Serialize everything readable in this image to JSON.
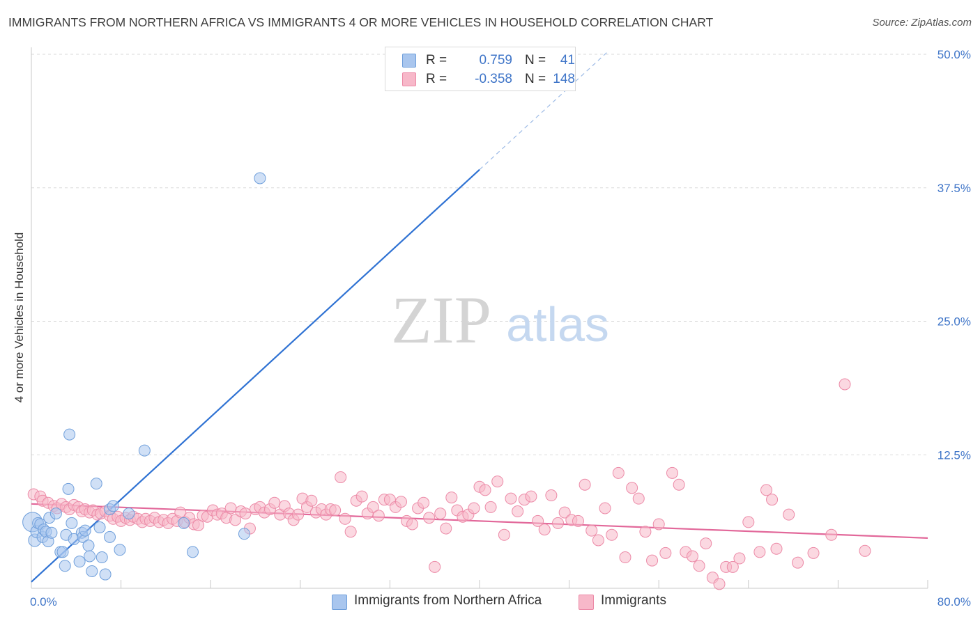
{
  "header": {
    "title": "IMMIGRANTS FROM NORTHERN AFRICA VS IMMIGRANTS 4 OR MORE VEHICLES IN HOUSEHOLD CORRELATION CHART",
    "source": "Source: ZipAtlas.com"
  },
  "watermark": {
    "zip": "ZIP",
    "atlas": "atlas"
  },
  "legend": {
    "r_label": "R =",
    "n_label": "N =",
    "rows": [
      {
        "r": "0.759",
        "n": "41",
        "color": "#a9c6ee"
      },
      {
        "r": "-0.358",
        "n": "148",
        "color": "#f7b8c9"
      }
    ]
  },
  "colors": {
    "blue_point_fill": "#a9c6ee",
    "blue_point_stroke": "#6f9fdb",
    "blue_line": "#2f72d3",
    "pink_point_fill": "#f7b8c9",
    "pink_point_stroke": "#ec8aa7",
    "pink_line": "#e2689a",
    "tick_label": "#3f75c8",
    "grid": "#dadada"
  },
  "chart_data": {
    "type": "scatter",
    "title": "IMMIGRANTS FROM NORTHERN AFRICA VS IMMIGRANTS 4 OR MORE VEHICLES IN HOUSEHOLD CORRELATION CHART",
    "xlabel": "",
    "ylabel": "4 or more Vehicles in Household",
    "xlim": [
      0,
      80
    ],
    "ylim": [
      0,
      50
    ],
    "x_tick_labels": [
      "0.0%",
      "80.0%"
    ],
    "y_ticks": [
      12.5,
      25.0,
      37.5,
      50.0
    ],
    "y_tick_labels": [
      "12.5%",
      "25.0%",
      "37.5%",
      "50.0%"
    ],
    "grid": true,
    "legend_position": "top-center",
    "series": [
      {
        "name": "Immigrants from Northern Africa",
        "r": 0.759,
        "n": 41,
        "trend": {
          "x": [
            0,
            40
          ],
          "y": [
            0.6,
            39.2
          ]
        },
        "trend_extension": {
          "x": [
            40,
            51.5
          ],
          "y": [
            39.2,
            50.3
          ]
        },
        "points": [
          [
            0.1,
            6.2,
            14
          ],
          [
            0.3,
            4.5,
            9
          ],
          [
            0.5,
            5.3,
            9
          ],
          [
            0.6,
            6.1,
            8
          ],
          [
            0.8,
            6.0,
            8
          ],
          [
            1.0,
            4.8,
            8
          ],
          [
            1.1,
            5.5,
            8
          ],
          [
            1.3,
            5.3,
            8
          ],
          [
            1.5,
            4.4,
            8
          ],
          [
            1.6,
            6.6,
            8
          ],
          [
            1.8,
            5.2,
            8
          ],
          [
            2.2,
            7.0,
            8
          ],
          [
            2.6,
            3.4,
            8
          ],
          [
            2.8,
            3.4,
            8
          ],
          [
            3.0,
            2.1,
            8
          ],
          [
            3.1,
            5.0,
            8
          ],
          [
            3.3,
            9.3,
            8
          ],
          [
            3.4,
            14.4,
            8
          ],
          [
            3.6,
            6.1,
            8
          ],
          [
            3.8,
            4.6,
            8
          ],
          [
            4.3,
            2.5,
            8
          ],
          [
            4.5,
            5.2,
            8
          ],
          [
            4.6,
            4.8,
            8
          ],
          [
            4.8,
            5.4,
            8
          ],
          [
            5.1,
            4.0,
            8
          ],
          [
            5.2,
            3.0,
            8
          ],
          [
            5.4,
            1.6,
            8
          ],
          [
            5.8,
            9.8,
            8
          ],
          [
            6.1,
            5.7,
            8
          ],
          [
            6.3,
            2.9,
            8
          ],
          [
            6.6,
            1.3,
            8
          ],
          [
            7.0,
            7.4,
            8
          ],
          [
            7.0,
            4.8,
            8
          ],
          [
            7.9,
            3.6,
            8
          ],
          [
            8.7,
            7.0,
            8
          ],
          [
            10.1,
            12.9,
            8
          ],
          [
            13.6,
            6.1,
            8
          ],
          [
            14.4,
            3.4,
            8
          ],
          [
            19.0,
            5.1,
            8
          ],
          [
            20.4,
            38.4,
            8
          ],
          [
            7.3,
            7.7,
            8
          ]
        ]
      },
      {
        "name": "Immigrants",
        "r": -0.358,
        "n": 148,
        "trend": {
          "x": [
            0,
            80
          ],
          "y": [
            7.9,
            4.7
          ]
        },
        "points": [
          [
            0.2,
            8.8,
            8
          ],
          [
            0.8,
            8.6,
            8
          ],
          [
            1.0,
            8.2,
            8
          ],
          [
            1.5,
            8.0,
            8
          ],
          [
            2.0,
            7.7,
            8
          ],
          [
            2.3,
            7.5,
            8
          ],
          [
            2.7,
            7.9,
            8
          ],
          [
            3.1,
            7.6,
            8
          ],
          [
            3.4,
            7.4,
            8
          ],
          [
            3.8,
            7.8,
            8
          ],
          [
            4.2,
            7.6,
            8
          ],
          [
            4.5,
            7.2,
            8
          ],
          [
            4.8,
            7.4,
            8
          ],
          [
            5.2,
            7.1,
            8
          ],
          [
            5.5,
            7.3,
            8
          ],
          [
            5.9,
            6.9,
            8
          ],
          [
            6.2,
            7.0,
            8
          ],
          [
            6.6,
            7.2,
            8
          ],
          [
            7.0,
            6.8,
            8
          ],
          [
            7.3,
            6.5,
            8
          ],
          [
            7.7,
            6.7,
            8
          ],
          [
            8.0,
            6.3,
            8
          ],
          [
            8.4,
            6.6,
            8
          ],
          [
            8.8,
            6.4,
            8
          ],
          [
            9.1,
            6.7,
            8
          ],
          [
            9.5,
            6.5,
            8
          ],
          [
            9.9,
            6.2,
            8
          ],
          [
            10.2,
            6.5,
            8
          ],
          [
            10.6,
            6.3,
            8
          ],
          [
            11.0,
            6.6,
            8
          ],
          [
            11.4,
            6.2,
            8
          ],
          [
            11.8,
            6.4,
            8
          ],
          [
            12.2,
            6.1,
            8
          ],
          [
            12.6,
            6.5,
            8
          ],
          [
            13.0,
            6.3,
            8
          ],
          [
            13.3,
            7.1,
            8
          ],
          [
            13.7,
            6.2,
            8
          ],
          [
            14.1,
            6.6,
            8
          ],
          [
            14.5,
            6.0,
            8
          ],
          [
            14.9,
            5.9,
            8
          ],
          [
            15.3,
            6.8,
            8
          ],
          [
            15.7,
            6.7,
            8
          ],
          [
            16.2,
            7.3,
            8
          ],
          [
            16.6,
            6.9,
            8
          ],
          [
            17.0,
            7.0,
            8
          ],
          [
            17.4,
            6.6,
            8
          ],
          [
            17.8,
            7.5,
            8
          ],
          [
            18.2,
            6.4,
            8
          ],
          [
            18.7,
            7.2,
            8
          ],
          [
            19.1,
            7.0,
            8
          ],
          [
            19.5,
            5.6,
            8
          ],
          [
            20.0,
            7.4,
            8
          ],
          [
            20.4,
            7.6,
            8
          ],
          [
            20.8,
            7.1,
            8
          ],
          [
            21.3,
            7.4,
            8
          ],
          [
            21.7,
            8.0,
            8
          ],
          [
            22.2,
            6.9,
            8
          ],
          [
            22.6,
            7.7,
            8
          ],
          [
            23.0,
            7.0,
            8
          ],
          [
            23.4,
            6.4,
            8
          ],
          [
            23.8,
            6.9,
            8
          ],
          [
            24.2,
            8.4,
            8
          ],
          [
            24.6,
            7.6,
            8
          ],
          [
            25.0,
            8.2,
            8
          ],
          [
            25.4,
            7.1,
            8
          ],
          [
            25.9,
            7.4,
            8
          ],
          [
            26.3,
            6.9,
            8
          ],
          [
            26.7,
            7.4,
            8
          ],
          [
            27.1,
            7.3,
            8
          ],
          [
            27.6,
            10.4,
            8
          ],
          [
            28.0,
            6.5,
            8
          ],
          [
            28.5,
            5.3,
            8
          ],
          [
            29.0,
            8.2,
            8
          ],
          [
            29.5,
            8.6,
            8
          ],
          [
            30.0,
            7.0,
            8
          ],
          [
            30.5,
            7.6,
            8
          ],
          [
            31.0,
            6.8,
            8
          ],
          [
            31.5,
            8.3,
            8
          ],
          [
            32.0,
            8.3,
            8
          ],
          [
            32.5,
            7.6,
            8
          ],
          [
            33.0,
            8.1,
            8
          ],
          [
            33.5,
            6.3,
            8
          ],
          [
            34.0,
            6.0,
            8
          ],
          [
            34.5,
            7.5,
            8
          ],
          [
            35.0,
            8.0,
            8
          ],
          [
            35.5,
            6.6,
            8
          ],
          [
            36.0,
            2.0,
            8
          ],
          [
            36.5,
            7.0,
            8
          ],
          [
            37.0,
            5.6,
            8
          ],
          [
            37.5,
            8.5,
            8
          ],
          [
            38.0,
            7.3,
            8
          ],
          [
            38.5,
            6.7,
            8
          ],
          [
            39.0,
            6.9,
            8
          ],
          [
            39.5,
            7.5,
            8
          ],
          [
            40.0,
            9.5,
            8
          ],
          [
            40.5,
            9.2,
            8
          ],
          [
            41.0,
            7.6,
            8
          ],
          [
            41.6,
            10.0,
            8
          ],
          [
            42.2,
            5.0,
            8
          ],
          [
            42.8,
            8.4,
            8
          ],
          [
            43.4,
            7.2,
            8
          ],
          [
            44.0,
            8.3,
            8
          ],
          [
            44.6,
            8.6,
            8
          ],
          [
            45.2,
            6.3,
            8
          ],
          [
            45.8,
            5.5,
            8
          ],
          [
            46.4,
            8.7,
            8
          ],
          [
            47.0,
            6.1,
            8
          ],
          [
            47.6,
            7.1,
            8
          ],
          [
            48.2,
            6.4,
            8
          ],
          [
            48.8,
            6.3,
            8
          ],
          [
            49.4,
            9.7,
            8
          ],
          [
            50.0,
            5.4,
            8
          ],
          [
            50.6,
            4.5,
            8
          ],
          [
            51.2,
            7.5,
            8
          ],
          [
            51.8,
            5.0,
            8
          ],
          [
            52.4,
            10.8,
            8
          ],
          [
            53.0,
            2.9,
            8
          ],
          [
            53.6,
            9.4,
            8
          ],
          [
            54.2,
            8.4,
            8
          ],
          [
            54.8,
            5.3,
            8
          ],
          [
            55.4,
            2.6,
            8
          ],
          [
            56.0,
            6.0,
            8
          ],
          [
            56.6,
            3.3,
            8
          ],
          [
            57.2,
            10.8,
            8
          ],
          [
            57.8,
            9.7,
            8
          ],
          [
            58.4,
            3.4,
            8
          ],
          [
            59.0,
            3.0,
            8
          ],
          [
            59.6,
            2.1,
            8
          ],
          [
            60.2,
            4.2,
            8
          ],
          [
            60.8,
            1.0,
            8
          ],
          [
            61.4,
            0.4,
            8
          ],
          [
            62.0,
            2.0,
            8
          ],
          [
            62.6,
            2.0,
            8
          ],
          [
            63.2,
            2.8,
            8
          ],
          [
            64.0,
            6.2,
            8
          ],
          [
            65.0,
            3.4,
            8
          ],
          [
            65.6,
            9.2,
            8
          ],
          [
            66.1,
            8.3,
            8
          ],
          [
            66.5,
            3.7,
            8
          ],
          [
            67.6,
            6.9,
            8
          ],
          [
            68.4,
            2.4,
            8
          ],
          [
            69.8,
            3.3,
            8
          ],
          [
            71.4,
            5.0,
            8
          ],
          [
            72.6,
            19.1,
            8
          ],
          [
            74.4,
            3.5,
            8
          ]
        ]
      }
    ]
  },
  "bottom_legend": {
    "items": [
      {
        "label": "Immigrants from Northern Africa"
      },
      {
        "label": "Immigrants"
      }
    ]
  }
}
